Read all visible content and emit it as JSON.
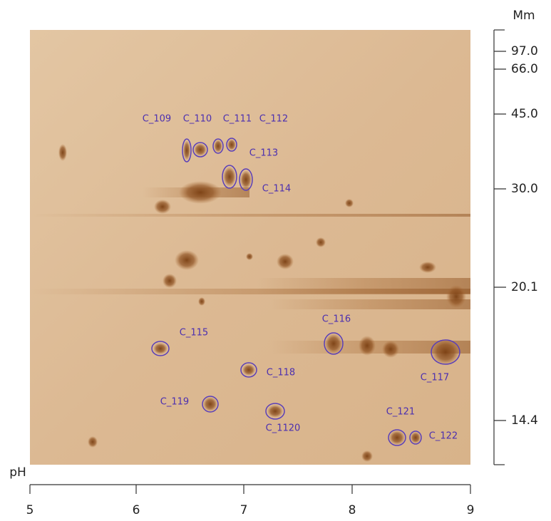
{
  "x_axis": {
    "label": "pH",
    "ticks": [
      "5",
      "6",
      "7",
      "8",
      "9"
    ]
  },
  "y_axis": {
    "label": "Mm",
    "ticks": [
      "97.0",
      "66.0",
      "45.0",
      "30.0",
      "20.1",
      "14.4"
    ]
  },
  "spots": [
    "C_109",
    "C_110",
    "C_111",
    "C_112",
    "C_113",
    "C_114",
    "C_115",
    "C_116",
    "C_117",
    "C_118",
    "C_119",
    "C_1120",
    "C_121",
    "C_122"
  ]
}
